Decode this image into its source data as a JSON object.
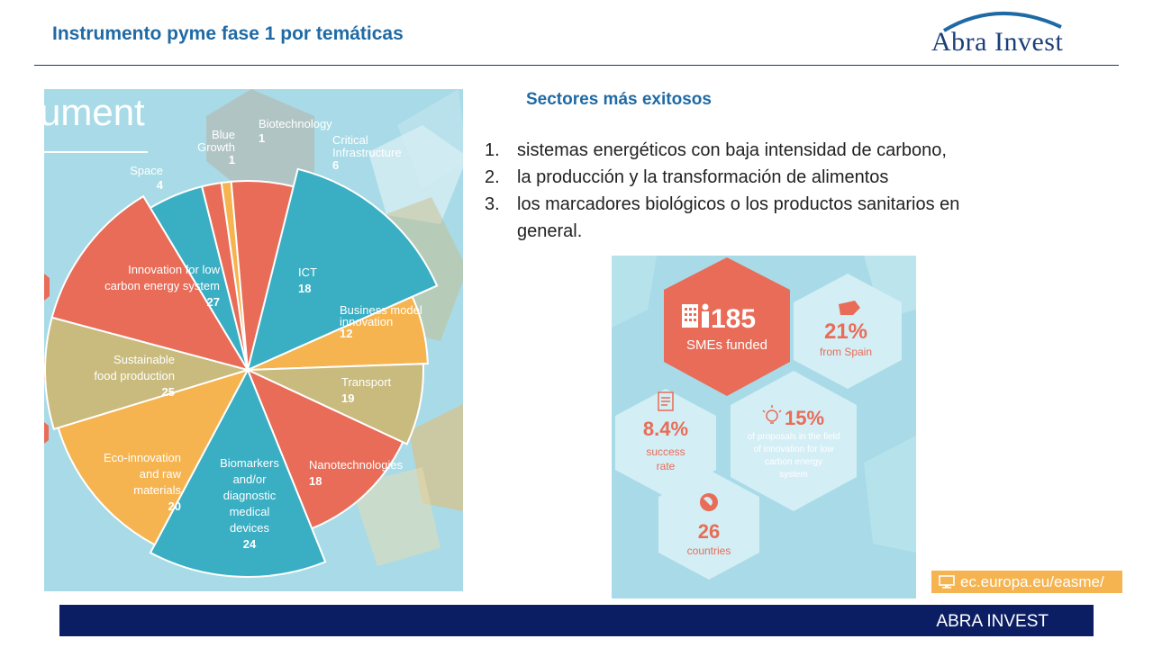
{
  "header": {
    "title": "Instrumento pyme fase 1 por temáticas"
  },
  "logo": {
    "text": "Abra Invest"
  },
  "left_infographic": {
    "partial_heading": "ument",
    "segments": [
      {
        "label": "Blue\nGrowth",
        "value": "1"
      },
      {
        "label": "Biotechnology",
        "value": "1"
      },
      {
        "label": "Critical\nInfrastructure",
        "value": "6"
      },
      {
        "label": "Space",
        "value": "4"
      },
      {
        "label": "ICT",
        "value": "18"
      },
      {
        "label": "Innovation for low\ncarbon energy system",
        "value": "27"
      },
      {
        "label": "Business model\ninnovation",
        "value": "12"
      },
      {
        "label": "Sustainable\nfood production",
        "value": "25"
      },
      {
        "label": "Transport",
        "value": "19"
      },
      {
        "label": "Eco-innovation\nand raw\nmaterials",
        "value": "20"
      },
      {
        "label": "Biomarkers\nand/or\ndiagnostic\nmedical\ndevices",
        "value": "24"
      },
      {
        "label": "Nanotechnologies",
        "value": "18"
      }
    ]
  },
  "section": {
    "heading": "Sectores más exitosos",
    "items": [
      {
        "num": "1.",
        "text": "sistemas energéticos con baja intensidad de carbono,"
      },
      {
        "num": "2.",
        "text": "la producción y la transformación de alimentos"
      },
      {
        "num": "3.",
        "text": "los marcadores biológicos o los productos sanitarios en general."
      }
    ]
  },
  "right_infographic": {
    "funded": {
      "value": "185",
      "label": "SMEs funded"
    },
    "spain": {
      "value": "21%",
      "label": "from Spain"
    },
    "success": {
      "value": "8.4%",
      "label": "success\nrate"
    },
    "proposals": {
      "value": "15%",
      "label": "of proposals in the field\nof innovation for low\ncarbon energy\nsystem"
    },
    "countries": {
      "value": "26",
      "label": "countries"
    }
  },
  "source": {
    "text": "ec.europa.eu/easme/"
  },
  "footer": {
    "text": "ABRA INVEST"
  },
  "colors": {
    "title_blue": "#1f6aa5",
    "footer_navy": "#0c1e63",
    "coral": "#e86c57",
    "teal": "#3aaec3",
    "amber": "#f5b450",
    "khaki": "#c9bb7e",
    "sky": "#a8dbe7"
  }
}
